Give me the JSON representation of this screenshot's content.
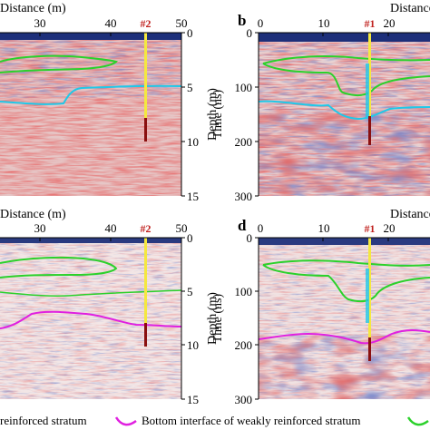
{
  "panels": [
    {
      "id": "a",
      "letter": "",
      "x_label": "Distance (m)",
      "x_ticks": [
        "30",
        "40",
        "50"
      ],
      "y_label": "Depth (m)",
      "y_ticks": [
        "0",
        "5",
        "10",
        "15"
      ],
      "borehole": "#2",
      "bottom_line": false
    },
    {
      "id": "b",
      "letter": "b",
      "x_label": "Distance",
      "x_ticks": [
        "0",
        "10",
        "20"
      ],
      "y_label": "Time (ns)",
      "y_ticks": [
        "0",
        "100",
        "200",
        "300"
      ],
      "borehole": "#1",
      "bottom_line": false
    },
    {
      "id": "c",
      "letter": "",
      "x_label": "Distance (m)",
      "x_ticks": [
        "30",
        "40",
        "50"
      ],
      "y_label": "Depth (m)",
      "y_ticks": [
        "0",
        "5",
        "10",
        "15"
      ],
      "borehole": "#2",
      "bottom_line": true
    },
    {
      "id": "d",
      "letter": "d",
      "x_label": "Distance",
      "x_ticks": [
        "0",
        "10",
        "20"
      ],
      "y_label": "Time (ns)",
      "y_ticks": [
        "0",
        "100",
        "200",
        "300"
      ],
      "borehole": "#1",
      "bottom_line": true
    }
  ],
  "legend": {
    "item1": "reinforced stratum",
    "item2": "Bottom interface of weakly reinforced stratum"
  },
  "colors": {
    "red": "#c42424",
    "blue": "#1f3c9a",
    "green": "#2bd12b",
    "cyan": "#20c8e8",
    "magenta": "#e020e0",
    "borehole_yellow": "#f4e840",
    "borehole_dark": "#8a1010",
    "label_red": "#c0201d"
  }
}
